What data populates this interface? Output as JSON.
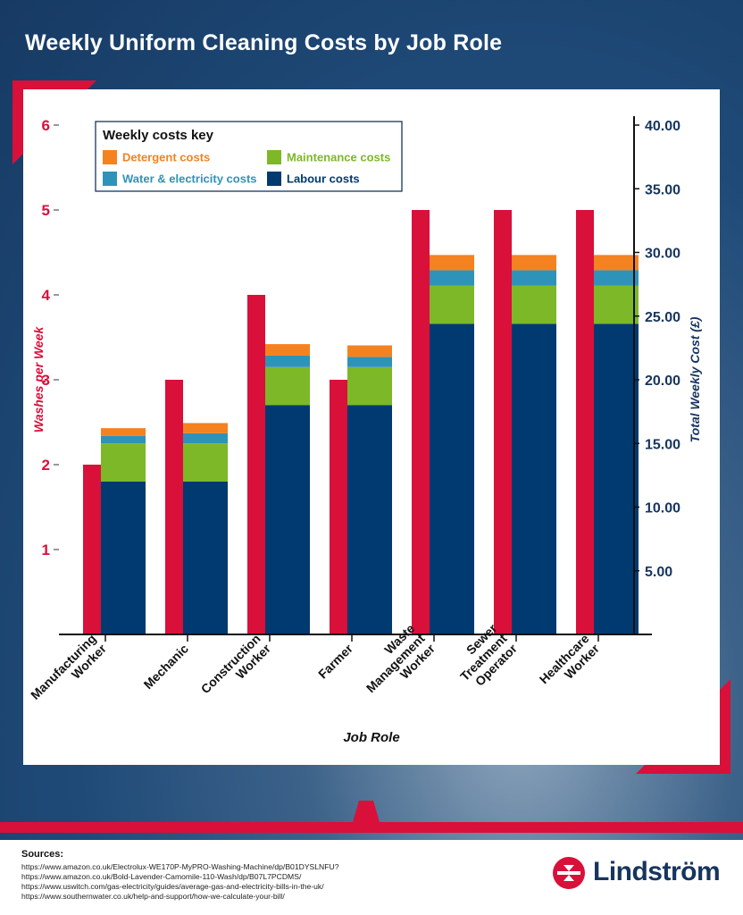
{
  "title": "Weekly Uniform Cleaning Costs by Job Role",
  "colors": {
    "washes": "#d9103a",
    "labour": "#003a70",
    "maintenance": "#7cb828",
    "water": "#2e93b9",
    "detergent": "#f58220",
    "right_axis": "#16355e"
  },
  "chart_data": {
    "type": "bar",
    "xlabel": "Job Role",
    "ylabel": "Washes per Week",
    "y2label": "Total Weekly Cost (£)",
    "ylim": [
      0,
      6
    ],
    "y2lim": [
      0,
      40
    ],
    "yticks": [
      "1",
      "2",
      "3",
      "4",
      "5",
      "6"
    ],
    "y2ticks": [
      "5.00",
      "10.00",
      "15.00",
      "20.00",
      "25.00",
      "30.00",
      "35.00",
      "40.00"
    ],
    "categories": [
      [
        "Manufacturing",
        "Worker"
      ],
      [
        "Mechanic"
      ],
      [
        "Construction",
        "Worker"
      ],
      [
        "Farmer"
      ],
      [
        "Waste",
        "Management",
        "Worker"
      ],
      [
        "Sewer",
        "Treatment",
        "Operator"
      ],
      [
        "Healthcare",
        "Worker"
      ]
    ],
    "washes_per_week": [
      2,
      3,
      4,
      3,
      5,
      5,
      5
    ],
    "cost_series": [
      {
        "name": "Labour costs",
        "values": [
          12.0,
          12.0,
          18.0,
          18.0,
          24.4,
          24.4,
          24.4
        ]
      },
      {
        "name": "Maintenance costs",
        "values": [
          3.0,
          3.0,
          3.0,
          3.0,
          3.0,
          3.0,
          3.0
        ]
      },
      {
        "name": "Water & electricity costs",
        "values": [
          0.6,
          0.8,
          0.9,
          0.8,
          1.2,
          1.2,
          1.2
        ]
      },
      {
        "name": "Detergent costs",
        "values": [
          0.6,
          0.8,
          0.9,
          0.9,
          1.2,
          1.2,
          1.2
        ]
      }
    ],
    "legend_title": "Weekly costs key",
    "legend_position": "top-left"
  },
  "sources": {
    "label": "Sources:",
    "lines": [
      "https://www.amazon.co.uk/Electrolux-WE170P-MyPRO-Washing-Machine/dp/B01DYSLNFU?",
      "https://www.amazon.co.uk/Bold-Lavender-Camomile-110-Wash/dp/B07L7PCDMS/",
      "https://www.uswitch.com/gas-electricity/guides/average-gas-and-electricity-bills-in-the-uk/",
      "https://www.southernwater.co.uk/help-and-support/how-we-calculate-your-bill/"
    ]
  },
  "brand": {
    "name": "Lindström"
  }
}
